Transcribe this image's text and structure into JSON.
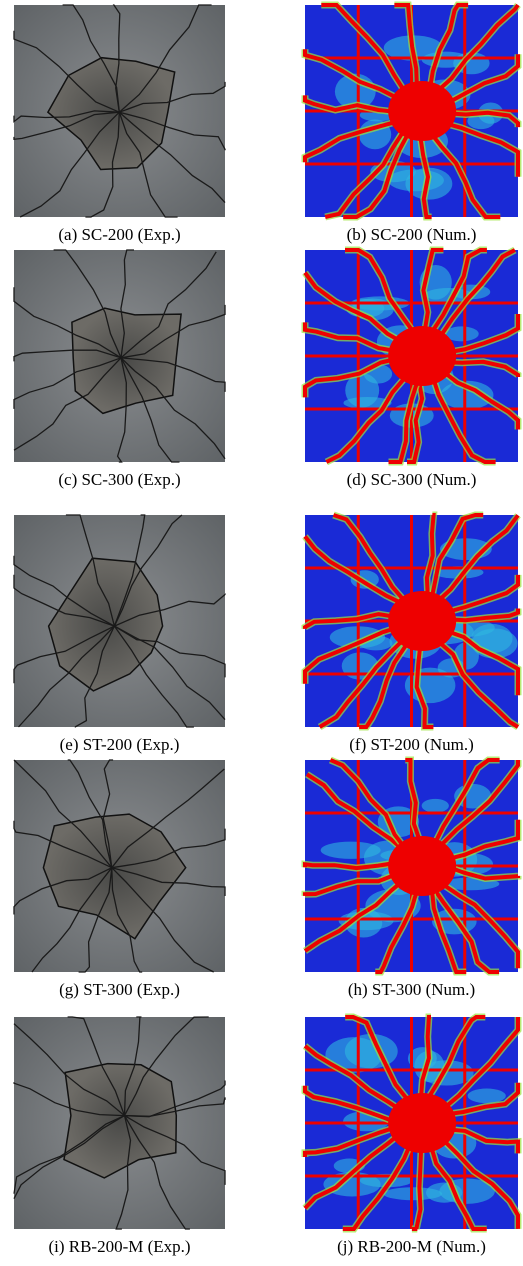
{
  "panels": [
    {
      "caption": "(a) SC-200 (Exp.)"
    },
    {
      "caption": "(b) SC-200 (Num.)"
    },
    {
      "caption": "(c) SC-300 (Exp.)"
    },
    {
      "caption": "(d) SC-300 (Num.)"
    },
    {
      "caption": "(e) ST-200 (Exp.)"
    },
    {
      "caption": "(f) ST-200 (Num.)"
    },
    {
      "caption": "(g) ST-300 (Exp.)"
    },
    {
      "caption": "(h) ST-300 (Num.)"
    },
    {
      "caption": "(i) RB-200-M (Exp.)"
    },
    {
      "caption": "(j) RB-200-M (Num.)"
    }
  ]
}
